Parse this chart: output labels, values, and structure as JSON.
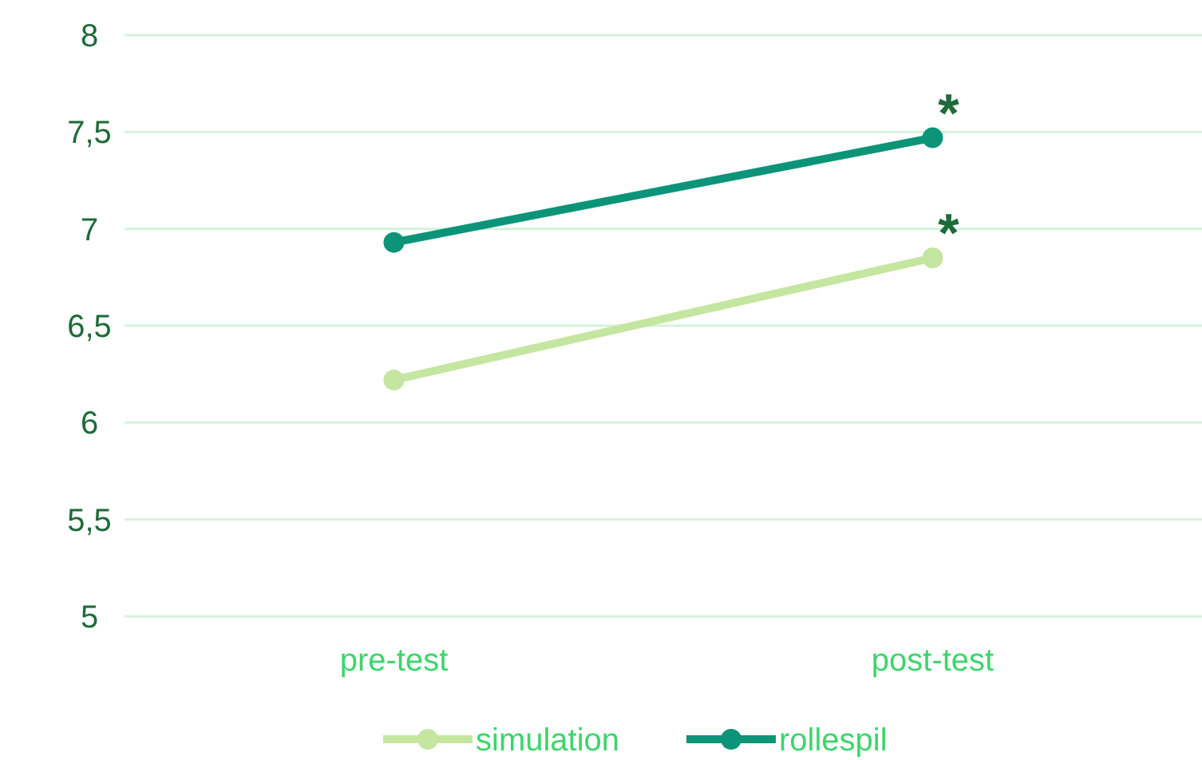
{
  "chart_data": {
    "type": "line",
    "categories": [
      "pre-test",
      "post-test"
    ],
    "series": [
      {
        "name": "simulation",
        "color": "#c5e6a0",
        "values": [
          6.22,
          6.85
        ]
      },
      {
        "name": "rollespil",
        "color": "#0c9478",
        "values": [
          6.93,
          7.47
        ]
      }
    ],
    "ylim": [
      5,
      8
    ],
    "yticks": [
      5,
      {
        "value": 5.5,
        "label": "5,5"
      },
      6,
      {
        "value": 6.5,
        "label": "6,5"
      },
      7,
      {
        "value": 7.5,
        "label": "7,5"
      },
      8
    ],
    "grid": "y",
    "legend": "bottom",
    "marker": "circle",
    "line_style": "solid",
    "annotations": [
      {
        "text": "*",
        "x": "post-test",
        "y": 6.85
      },
      {
        "text": "*",
        "x": "post-test",
        "y": 7.47
      }
    ]
  }
}
